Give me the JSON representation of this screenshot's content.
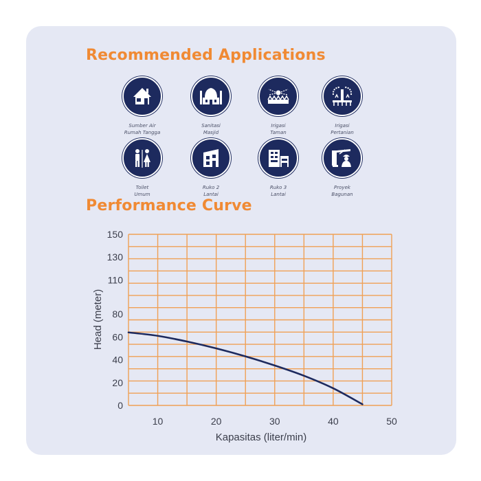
{
  "sections": {
    "applications_title": "Recommended Applications",
    "performance_title": "Performance Curve"
  },
  "applications": [
    {
      "icon": "house-icon",
      "line1": "Sumber Air",
      "line2": "Rumah Tangga"
    },
    {
      "icon": "mosque-icon",
      "line1": "Sanitasi",
      "line2": "Masjid"
    },
    {
      "icon": "garden-sprinkler-icon",
      "line1": "Irigasi",
      "line2": "Taman"
    },
    {
      "icon": "farm-irrigation-icon",
      "line1": "Irigasi",
      "line2": "Pertanian"
    },
    {
      "icon": "toilet-icon",
      "line1": "Toilet",
      "line2": "Umum"
    },
    {
      "icon": "building-2-floor-icon",
      "line1": "Ruko 2",
      "line2": "Lantai"
    },
    {
      "icon": "building-3-floor-icon",
      "line1": "Ruko 3",
      "line2": "Lantai"
    },
    {
      "icon": "construction-worker-icon",
      "line1": "Proyek",
      "line2": "Bagunan"
    }
  ],
  "colors": {
    "accent": "#f08a34",
    "navy": "#1d2a5e",
    "card_bg": "#e5e8f4",
    "grid": "#f0a055"
  },
  "chart_data": {
    "type": "line",
    "title": "Performance Curve",
    "xlabel": "Kapasitas (liter/min)",
    "ylabel": "Head (meter)",
    "xlim": [
      5,
      50
    ],
    "ylim": [
      0,
      150
    ],
    "x_ticks": [
      10,
      20,
      30,
      40,
      50
    ],
    "y_ticks": [
      0,
      20,
      40,
      60,
      80,
      110,
      130,
      150
    ],
    "grid": true,
    "series": [
      {
        "x": [
          5,
          10,
          15,
          20,
          25,
          30,
          35,
          40,
          45
        ],
        "y": [
          64,
          61,
          56,
          50,
          43,
          35,
          26,
          15,
          1
        ]
      }
    ]
  }
}
